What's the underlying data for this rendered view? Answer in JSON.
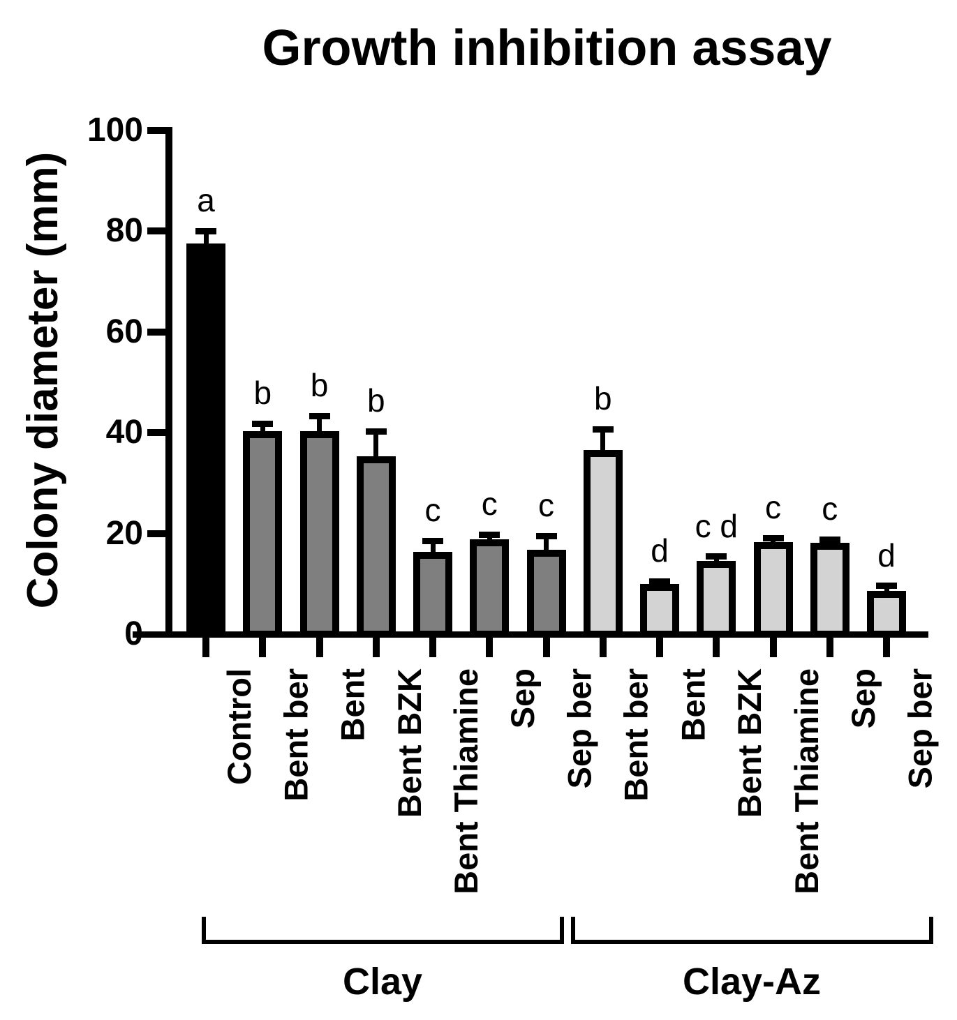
{
  "chart_data": {
    "type": "bar",
    "title": "Growth inhibition assay",
    "ylabel": "Colony diameter (mm)",
    "xlabel": "",
    "ylim": [
      0,
      100
    ],
    "yticks": [
      0,
      20,
      40,
      60,
      80,
      100
    ],
    "grid": false,
    "legend": "none",
    "error_bars": "+SE, cap style",
    "colors": {
      "control": "#000000",
      "clay": "#7f7f7f",
      "clay_az": "#d3d3d3"
    },
    "bars": [
      {
        "label": "Control",
        "value": 77.5,
        "error": 2.5,
        "letter": "a",
        "series": "control"
      },
      {
        "label": "Bent ber",
        "value": 40.3,
        "error": 1.5,
        "letter": "b",
        "series": "clay"
      },
      {
        "label": "Bent",
        "value": 40.3,
        "error": 3.0,
        "letter": "b",
        "series": "clay"
      },
      {
        "label": "Bent BZK",
        "value": 35.3,
        "error": 5.0,
        "letter": "b",
        "series": "clay"
      },
      {
        "label": "Bent Thiamine",
        "value": 16.3,
        "error": 2.2,
        "letter": "c",
        "series": "clay"
      },
      {
        "label": "Sep",
        "value": 18.8,
        "error": 1.0,
        "letter": "c",
        "series": "clay"
      },
      {
        "label": "Sep ber",
        "value": 16.7,
        "error": 2.8,
        "letter": "c",
        "series": "clay"
      },
      {
        "label": "Bent ber",
        "value": 36.6,
        "error": 4.1,
        "letter": "b",
        "series": "clay_az"
      },
      {
        "label": "Bent",
        "value": 10.0,
        "error": 0.5,
        "letter": "d",
        "series": "clay_az"
      },
      {
        "label": "Bent BZK",
        "value": 14.5,
        "error": 0.9,
        "letter": "c d",
        "series": "clay_az"
      },
      {
        "label": "Bent Thiamine",
        "value": 18.3,
        "error": 0.8,
        "letter": "c",
        "series": "clay_az"
      },
      {
        "label": "Sep",
        "value": 18.1,
        "error": 0.7,
        "letter": "c",
        "series": "clay_az"
      },
      {
        "label": "Sep ber",
        "value": 8.6,
        "error": 1.0,
        "letter": "d",
        "series": "clay_az"
      }
    ],
    "group_brackets": [
      {
        "label": "Clay"
      },
      {
        "label": "Clay-Az"
      }
    ]
  }
}
